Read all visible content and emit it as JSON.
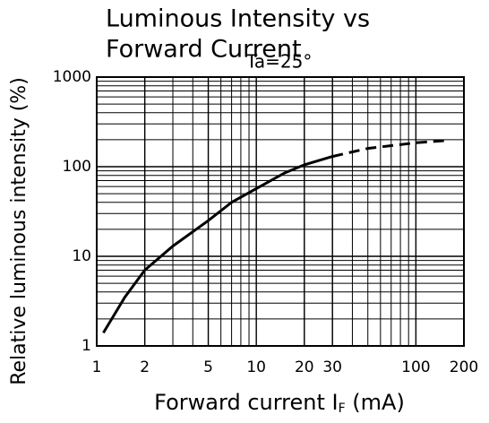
{
  "chart_data": {
    "type": "line",
    "title": [
      "Luminous Intensity vs",
      "Forward Current"
    ],
    "annotation": "Ta=25°",
    "y_label": "Relative luminous intensity (%)",
    "x_label": [
      "Forward current I",
      "F",
      " (mA)"
    ],
    "log_x": true,
    "log_y": true,
    "grid": true,
    "minor_grid": true,
    "xlim": [
      1,
      200
    ],
    "xticks": [
      1,
      2,
      5,
      10,
      20,
      30,
      100,
      200
    ],
    "ylim": [
      1,
      1000
    ],
    "yticks": [
      1,
      10,
      100,
      1000
    ],
    "series": [
      {
        "color": "#000000",
        "dash": false,
        "x": [
          1.1,
          1.5,
          2,
          3,
          5,
          7,
          10,
          15,
          20,
          30
        ],
        "values": [
          1.4,
          3.5,
          7,
          13,
          25,
          40,
          57,
          85,
          105,
          130
        ]
      },
      {
        "color": "#000000",
        "dash": true,
        "x": [
          30,
          50,
          100,
          150
        ],
        "values": [
          130,
          160,
          185,
          195
        ]
      }
    ]
  }
}
